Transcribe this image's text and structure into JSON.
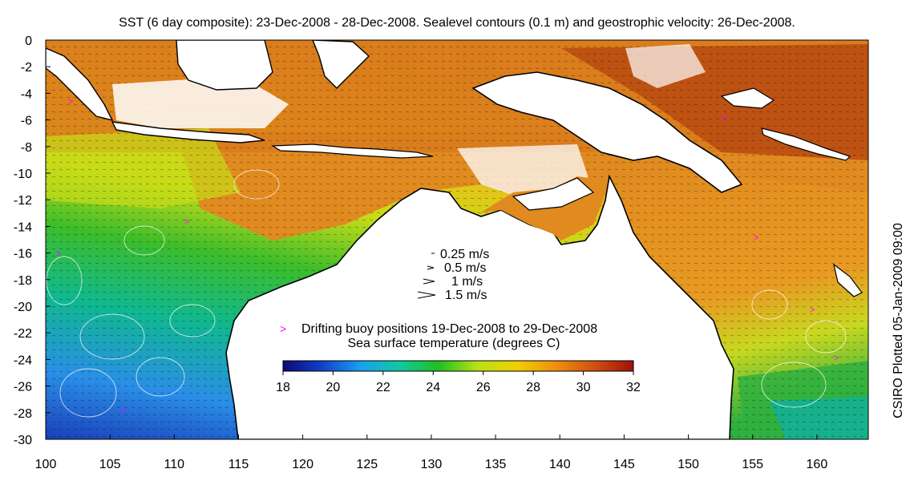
{
  "title": "SST (6 day composite): 23-Dec-2008 - 28-Dec-2008. Sealevel contours (0.1 m) and geostrophic velocity: 26-Dec-2008.",
  "side_label": "CSIRO Plotted 05-Jan-2009 09:00",
  "axes": {
    "x_ticks": [
      "100",
      "105",
      "110",
      "115",
      "120",
      "125",
      "130",
      "135",
      "140",
      "145",
      "150",
      "155",
      "160"
    ],
    "y_ticks": [
      "0",
      "-2",
      "-4",
      "-6",
      "-8",
      "-10",
      "-12",
      "-14",
      "-16",
      "-18",
      "-20",
      "-22",
      "-24",
      "-26",
      "-28",
      "-30"
    ],
    "x_range": [
      100,
      164
    ],
    "y_range": [
      -30,
      0
    ]
  },
  "velocity_legend": [
    "0.25 m/s",
    "0.5 m/s",
    "1 m/s",
    "1.5 m/s"
  ],
  "buoy_legend": "Drifting buoy positions 19-Dec-2008 to 29-Dec-2008",
  "colorbar": {
    "label": "Sea surface temperature (degrees C)",
    "ticks": [
      "18",
      "20",
      "22",
      "24",
      "26",
      "28",
      "30",
      "32"
    ],
    "range": [
      18,
      32
    ],
    "colors": [
      "#0a0a78",
      "#1040c8",
      "#1aa0f0",
      "#10c8a0",
      "#20c020",
      "#b8e018",
      "#f0d000",
      "#f09010",
      "#d05010",
      "#a01008"
    ]
  },
  "colors": {
    "land": "#ffffff",
    "coast": "#000000",
    "contour": "#ffffff",
    "buoy": "#ff00ff",
    "warm_sea": "#e08a20",
    "hot_sea": "#b84a12"
  }
}
